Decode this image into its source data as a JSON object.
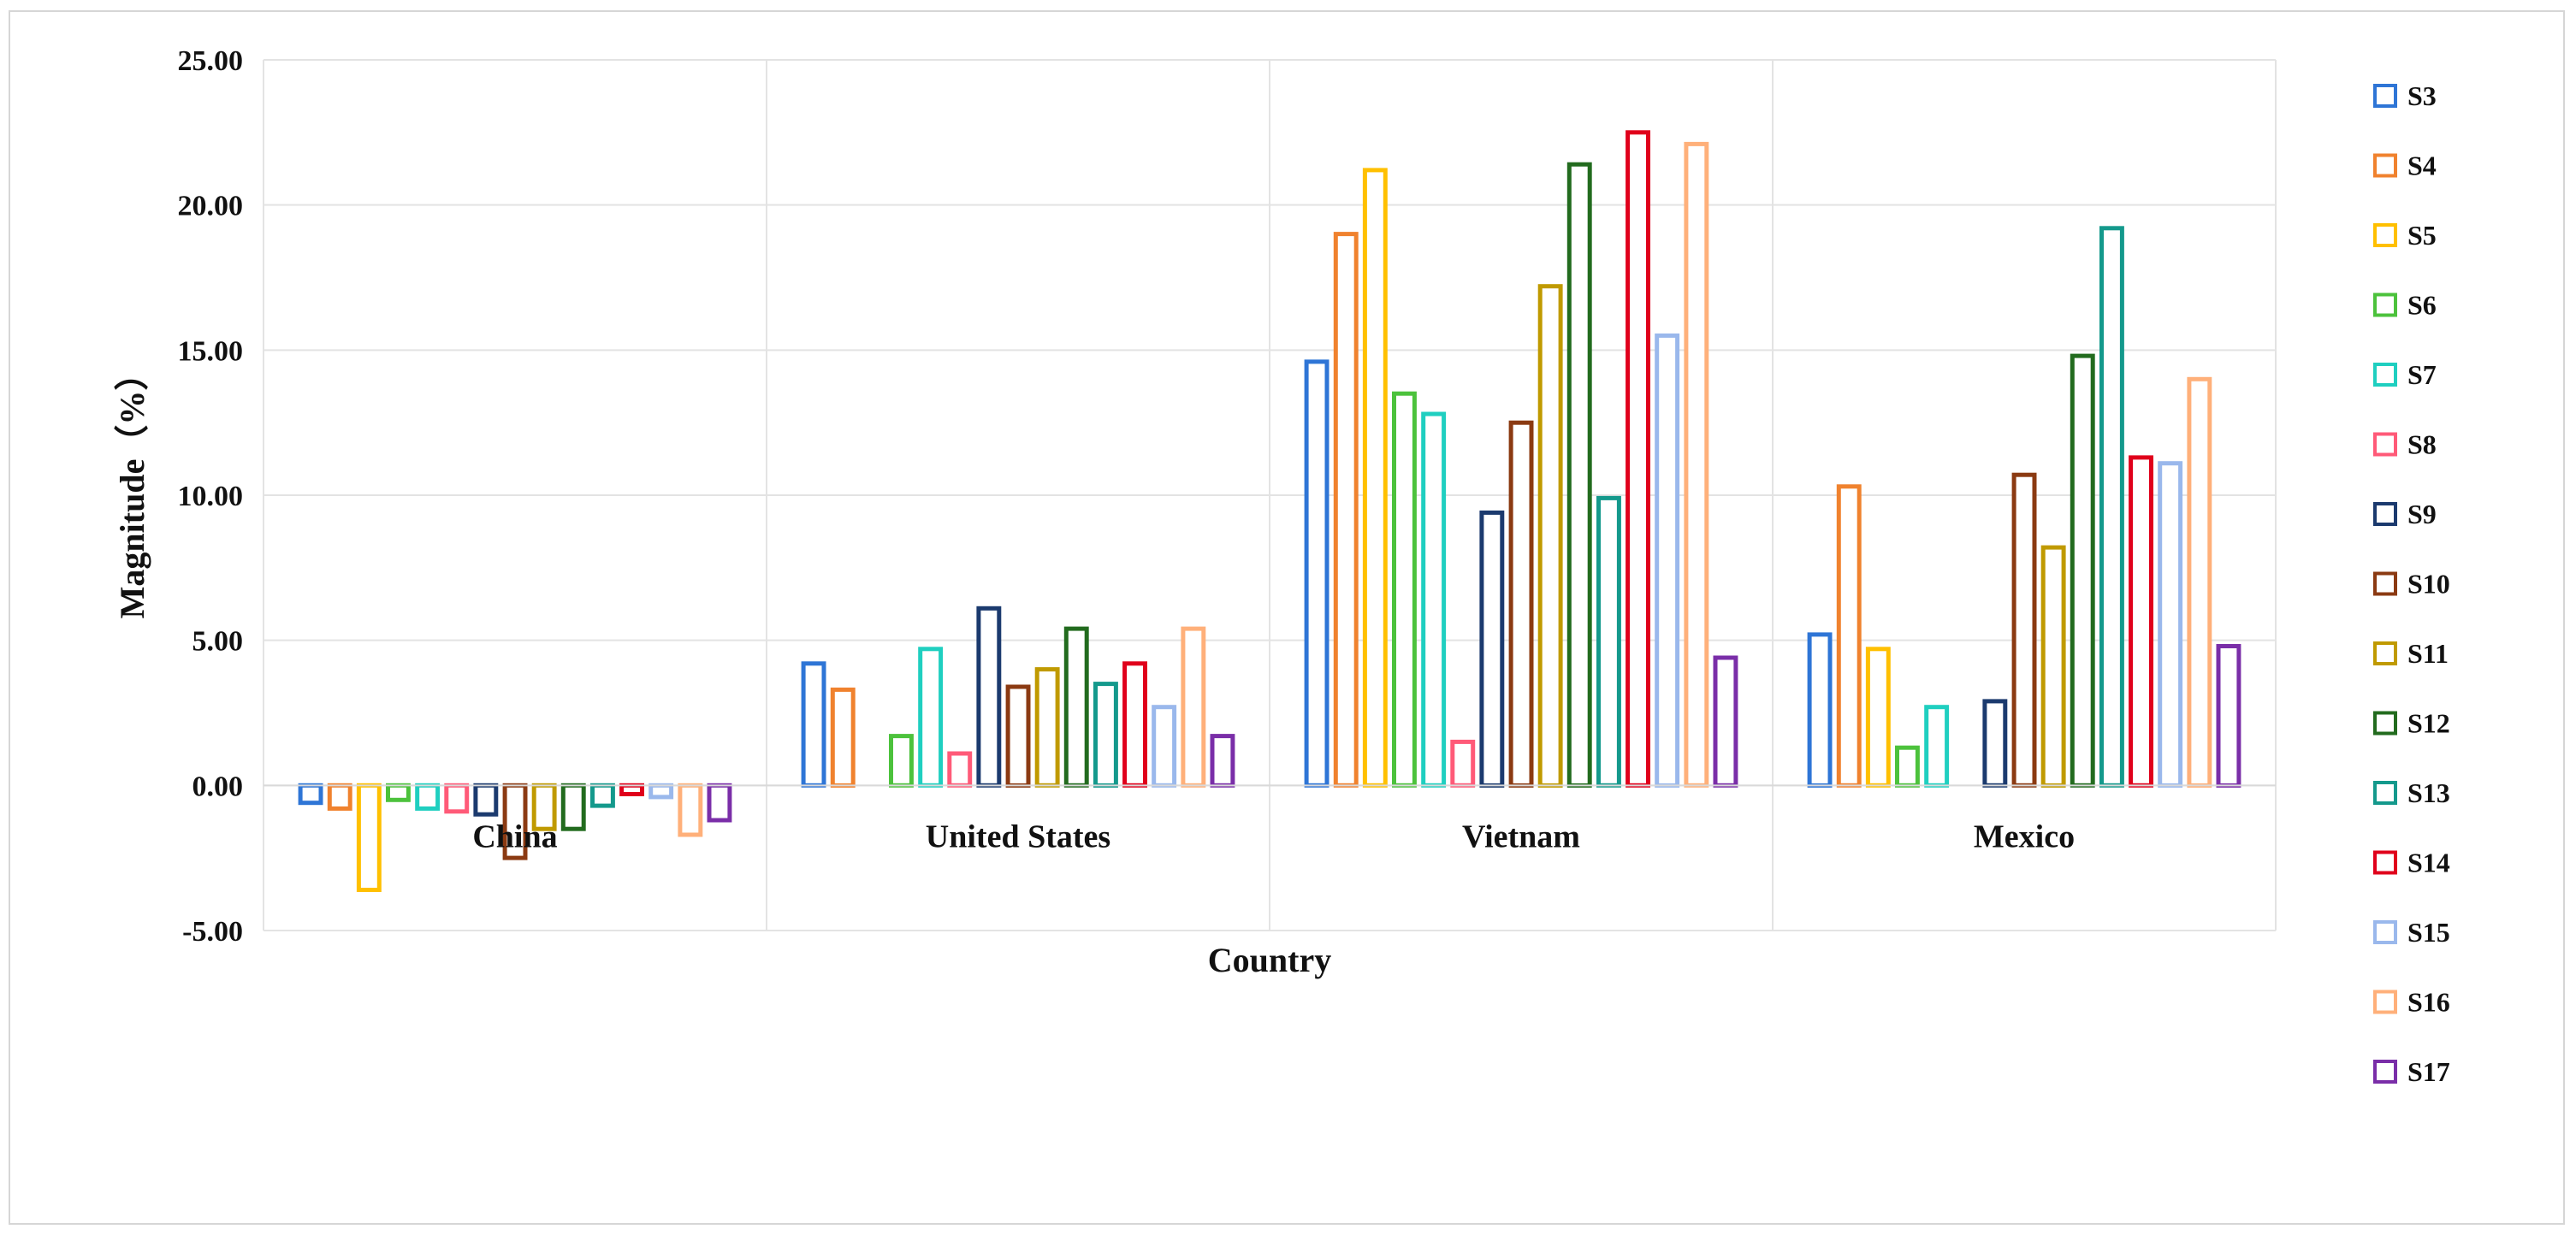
{
  "chart_data": {
    "type": "bar",
    "title": "",
    "xlabel": "Country",
    "ylabel": "Magnitude（%）",
    "categories": [
      "China",
      "United States",
      "Vietnam",
      "Mexico"
    ],
    "ylim": [
      -5,
      25
    ],
    "yticks": [
      25,
      20,
      15,
      10,
      5,
      0,
      -5
    ],
    "ytick_labels": [
      "25.00",
      "20.00",
      "15.00",
      "10.00",
      "5.00",
      "0.00",
      "-5.00"
    ],
    "negative_tick_color": "#ff0000",
    "bar_style": "outlined",
    "grid": true,
    "legend_position": "right",
    "series": [
      {
        "name": "S3",
        "color": "#2e75d6",
        "values": [
          -0.6,
          4.2,
          14.6,
          5.2
        ]
      },
      {
        "name": "S4",
        "color": "#f0822e",
        "values": [
          -0.8,
          3.3,
          19.0,
          10.3
        ]
      },
      {
        "name": "S5",
        "color": "#ffc000",
        "values": [
          -3.6,
          0.0,
          21.2,
          4.7
        ]
      },
      {
        "name": "S6",
        "color": "#4cc23c",
        "values": [
          -0.5,
          1.7,
          13.5,
          1.3
        ]
      },
      {
        "name": "S7",
        "color": "#1fcfc0",
        "values": [
          -0.8,
          4.7,
          12.8,
          2.7
        ]
      },
      {
        "name": "S8",
        "color": "#ff5a78",
        "values": [
          -0.9,
          1.1,
          1.5,
          0.0
        ]
      },
      {
        "name": "S9",
        "color": "#1b3a6e",
        "values": [
          -1.0,
          6.1,
          9.4,
          2.9
        ]
      },
      {
        "name": "S10",
        "color": "#8b3a12",
        "values": [
          -2.5,
          3.4,
          12.5,
          10.7
        ]
      },
      {
        "name": "S11",
        "color": "#c09a00",
        "values": [
          -1.5,
          4.0,
          17.2,
          8.2
        ]
      },
      {
        "name": "S12",
        "color": "#226b1e",
        "values": [
          -1.5,
          5.4,
          21.4,
          14.8
        ]
      },
      {
        "name": "S13",
        "color": "#14998c",
        "values": [
          -0.7,
          3.5,
          9.9,
          19.2
        ]
      },
      {
        "name": "S14",
        "color": "#e0001b",
        "values": [
          -0.3,
          4.2,
          22.5,
          11.3
        ]
      },
      {
        "name": "S15",
        "color": "#9ab8ec",
        "values": [
          -0.4,
          2.7,
          15.5,
          11.1
        ]
      },
      {
        "name": "S16",
        "color": "#ffb07a",
        "values": [
          -1.7,
          5.4,
          22.1,
          14.0
        ]
      },
      {
        "name": "S17",
        "color": "#7a2ea8",
        "values": [
          -1.2,
          1.7,
          4.4,
          4.8
        ]
      }
    ]
  }
}
